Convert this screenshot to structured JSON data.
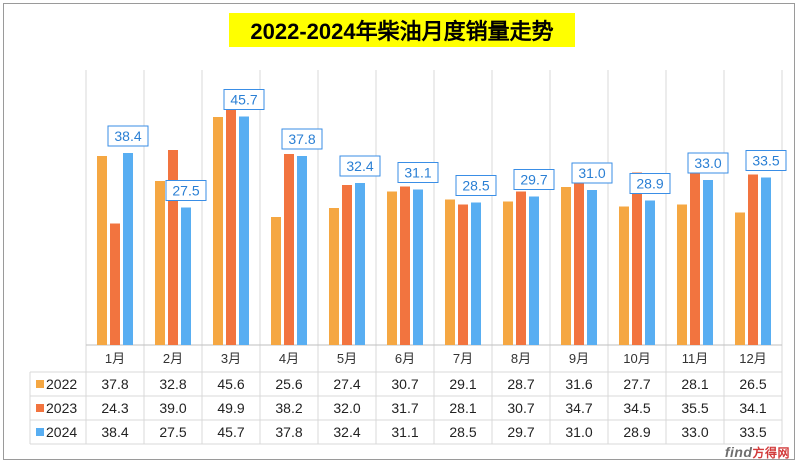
{
  "chart_data": {
    "type": "bar",
    "title": "2022-2024年柴油月度销量走势",
    "categories": [
      "1月",
      "2月",
      "3月",
      "4月",
      "5月",
      "6月",
      "7月",
      "8月",
      "9月",
      "10月",
      "11月",
      "12月"
    ],
    "series": [
      {
        "name": "2022",
        "color": "#f5a742",
        "values": [
          37.8,
          32.8,
          45.6,
          25.6,
          27.4,
          30.7,
          29.1,
          28.7,
          31.6,
          27.7,
          28.1,
          26.5
        ]
      },
      {
        "name": "2023",
        "color": "#f2743f",
        "values": [
          24.3,
          39.0,
          49.9,
          38.2,
          32.0,
          31.7,
          28.1,
          30.7,
          34.7,
          34.5,
          35.5,
          34.1
        ]
      },
      {
        "name": "2024",
        "color": "#58aef2",
        "values": [
          38.4,
          27.5,
          45.7,
          37.8,
          32.4,
          31.1,
          28.5,
          29.7,
          31.0,
          28.9,
          33.0,
          33.5
        ]
      }
    ],
    "labels_2024": [
      "38.4",
      "27.5",
      "45.7",
      "37.8",
      "32.4",
      "31.1",
      "28.5",
      "29.7",
      "31.0",
      "28.9",
      "33.0",
      "33.5"
    ],
    "table_2022": [
      "37.8",
      "32.8",
      "45.6",
      "25.6",
      "27.4",
      "30.7",
      "29.1",
      "28.7",
      "31.6",
      "27.7",
      "28.1",
      "26.5"
    ],
    "table_2023": [
      "24.3",
      "39.0",
      "49.9",
      "38.2",
      "32.0",
      "31.7",
      "28.1",
      "30.7",
      "34.7",
      "34.5",
      "35.5",
      "34.1"
    ],
    "table_2024": [
      "38.4",
      "27.5",
      "45.7",
      "37.8",
      "32.4",
      "31.1",
      "28.5",
      "29.7",
      "31.0",
      "28.9",
      "33.0",
      "33.5"
    ],
    "ylim": [
      0,
      55
    ],
    "grid": true,
    "xlabel": "",
    "ylabel": ""
  },
  "watermark": {
    "brand": "find",
    "suffix": "方得网"
  }
}
